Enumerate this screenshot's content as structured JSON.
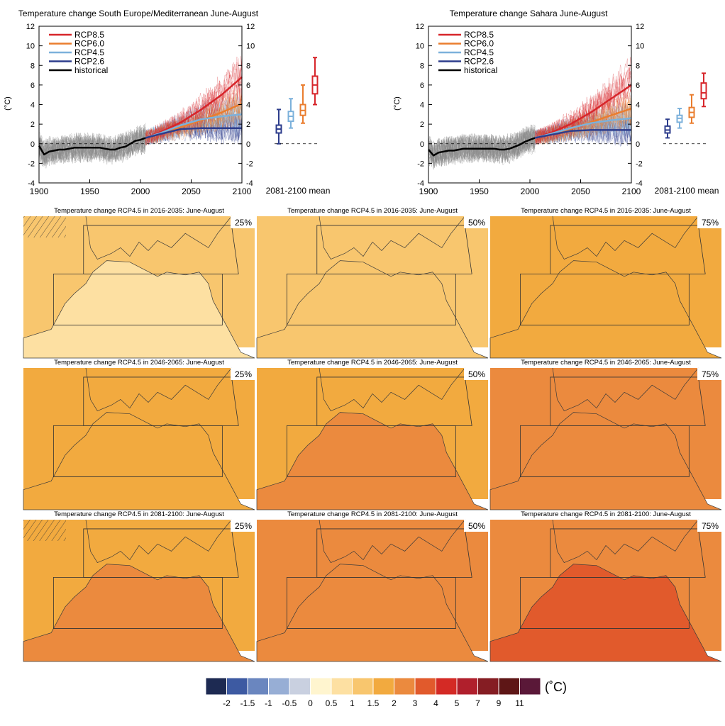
{
  "colors": {
    "rcp85": "#d7262b",
    "rcp60": "#ea7d2e",
    "rcp45": "#7cb1db",
    "rcp26": "#2d3d8c",
    "historical": "#000000",
    "historical_spread": "#8a8a8a",
    "land_outline": "#3a3a3a",
    "box_outline": "#333333"
  },
  "chart_data": [
    {
      "type": "line",
      "title": "Temperature change South Europe/Mediterranean June-August",
      "ylabel": "(°C)",
      "xlabel": "",
      "xlim": [
        1900,
        2100
      ],
      "ylim": [
        -4,
        12
      ],
      "x_ticks": [
        "1900",
        "1950",
        "2000",
        "2050",
        "2100"
      ],
      "y_ticks": [
        "-4",
        "-2",
        "0",
        "2",
        "4",
        "6",
        "8",
        "10",
        "12"
      ],
      "legend": [
        "RCP8.5",
        "RCP6.0",
        "RCP4.5",
        "RCP2.6",
        "historical"
      ],
      "legend_placement": "top-left",
      "series": [
        {
          "name": "historical",
          "x": [
            1900,
            1905,
            1910,
            1915,
            1920,
            1925,
            1930,
            1935,
            1940,
            1945,
            1950,
            1955,
            1960,
            1965,
            1970,
            1975,
            1980,
            1985,
            1990,
            1995,
            2000,
            2005
          ],
          "values": [
            -0.2,
            -1.1,
            -0.8,
            -0.7,
            -0.6,
            -0.6,
            -0.5,
            -0.4,
            -0.4,
            -0.4,
            -0.4,
            -0.4,
            -0.4,
            -0.5,
            -0.6,
            -0.6,
            -0.4,
            -0.3,
            0.0,
            0.3,
            0.4,
            0.6
          ]
        },
        {
          "name": "RCP8.5",
          "x": [
            2005,
            2020,
            2040,
            2060,
            2080,
            2100
          ],
          "values": [
            0.6,
            1.2,
            2.2,
            3.5,
            5.0,
            6.8
          ]
        },
        {
          "name": "RCP6.0",
          "x": [
            2005,
            2020,
            2040,
            2060,
            2080,
            2100
          ],
          "values": [
            0.6,
            1.0,
            1.7,
            2.4,
            3.2,
            4.1
          ]
        },
        {
          "name": "RCP4.5",
          "x": [
            2005,
            2020,
            2040,
            2060,
            2080,
            2100
          ],
          "values": [
            0.6,
            1.1,
            1.9,
            2.5,
            2.8,
            3.0
          ]
        },
        {
          "name": "RCP2.6",
          "x": [
            2005,
            2020,
            2040,
            2060,
            2080,
            2100
          ],
          "values": [
            0.6,
            1.0,
            1.5,
            1.6,
            1.6,
            1.6
          ]
        }
      ],
      "boxplot": {
        "label": "2081-2100 mean",
        "boxes": [
          {
            "name": "RCP2.6",
            "whisker_low": 0.0,
            "q1": 1.1,
            "median": 1.5,
            "q3": 1.9,
            "whisker_high": 3.5
          },
          {
            "name": "RCP4.5",
            "whisker_low": 1.6,
            "q1": 2.3,
            "median": 2.8,
            "q3": 3.3,
            "whisker_high": 4.6
          },
          {
            "name": "RCP6.0",
            "whisker_low": 2.1,
            "q1": 2.9,
            "median": 3.4,
            "q3": 4.0,
            "whisker_high": 6.0
          },
          {
            "name": "RCP8.5",
            "whisker_low": 4.0,
            "q1": 5.1,
            "median": 6.0,
            "q3": 6.9,
            "whisker_high": 8.8
          }
        ]
      }
    },
    {
      "type": "line",
      "title": "Temperature change Sahara June-August",
      "ylabel": "(°C)",
      "xlabel": "",
      "xlim": [
        1900,
        2100
      ],
      "ylim": [
        -4,
        12
      ],
      "x_ticks": [
        "1900",
        "1950",
        "2000",
        "2050",
        "2100"
      ],
      "y_ticks": [
        "-4",
        "-2",
        "0",
        "2",
        "4",
        "6",
        "8",
        "10",
        "12"
      ],
      "legend": [
        "RCP8.5",
        "RCP6.0",
        "RCP4.5",
        "RCP2.6",
        "historical"
      ],
      "legend_placement": "top-left",
      "series": [
        {
          "name": "historical",
          "x": [
            1900,
            1905,
            1910,
            1915,
            1920,
            1925,
            1930,
            1935,
            1940,
            1945,
            1950,
            1955,
            1960,
            1965,
            1970,
            1975,
            1980,
            1985,
            1990,
            1995,
            2000,
            2005
          ],
          "values": [
            -0.6,
            -1.2,
            -0.9,
            -0.8,
            -0.7,
            -0.7,
            -0.6,
            -0.5,
            -0.5,
            -0.5,
            -0.5,
            -0.5,
            -0.5,
            -0.5,
            -0.6,
            -0.6,
            -0.5,
            -0.3,
            -0.1,
            0.2,
            0.4,
            0.6
          ]
        },
        {
          "name": "RCP8.5",
          "x": [
            2005,
            2020,
            2040,
            2060,
            2080,
            2100
          ],
          "values": [
            0.6,
            1.1,
            2.0,
            3.2,
            4.6,
            6.0
          ]
        },
        {
          "name": "RCP6.0",
          "x": [
            2005,
            2020,
            2040,
            2060,
            2080,
            2100
          ],
          "values": [
            0.6,
            0.9,
            1.5,
            2.2,
            2.9,
            3.6
          ]
        },
        {
          "name": "RCP4.5",
          "x": [
            2005,
            2020,
            2040,
            2060,
            2080,
            2100
          ],
          "values": [
            0.6,
            1.0,
            1.6,
            2.1,
            2.4,
            2.6
          ]
        },
        {
          "name": "RCP2.6",
          "x": [
            2005,
            2020,
            2040,
            2060,
            2080,
            2100
          ],
          "values": [
            0.6,
            0.9,
            1.3,
            1.4,
            1.4,
            1.4
          ]
        }
      ],
      "boxplot": {
        "label": "2081-2100 mean",
        "boxes": [
          {
            "name": "RCP2.6",
            "whisker_low": 0.6,
            "q1": 1.1,
            "median": 1.4,
            "q3": 1.8,
            "whisker_high": 2.5
          },
          {
            "name": "RCP4.5",
            "whisker_low": 1.6,
            "q1": 2.2,
            "median": 2.6,
            "q3": 2.9,
            "whisker_high": 3.6
          },
          {
            "name": "RCP6.0",
            "whisker_low": 2.1,
            "q1": 2.7,
            "median": 3.2,
            "q3": 3.7,
            "whisker_high": 5.0
          },
          {
            "name": "RCP8.5",
            "whisker_low": 3.8,
            "q1": 4.6,
            "median": 5.2,
            "q3": 6.2,
            "whisker_high": 7.2
          }
        ]
      }
    },
    {
      "type": "heatmap",
      "title": "Temperature change RCP4.5 in 2016-2035: June-August",
      "percentiles": [
        "25%",
        "50%",
        "75%"
      ],
      "land_level_degC": [
        0.5,
        1.0,
        1.5
      ],
      "sea_level_degC": [
        1.0,
        1.0,
        1.5
      ]
    },
    {
      "type": "heatmap",
      "title": "Temperature change RCP4.5 in 2046-2065: June-August",
      "percentiles": [
        "25%",
        "50%",
        "75%"
      ],
      "land_level_degC": [
        1.5,
        2.0,
        2.0
      ],
      "sea_level_degC": [
        1.5,
        1.5,
        2.0
      ]
    },
    {
      "type": "heatmap",
      "title": "Temperature change RCP4.5 in 2081-2100: June-August",
      "percentiles": [
        "25%",
        "50%",
        "75%"
      ],
      "land_level_degC": [
        2.0,
        2.0,
        3.0
      ],
      "sea_level_degC": [
        1.5,
        2.0,
        2.0
      ]
    },
    {
      "type": "colorbar",
      "unit": "(˚C)",
      "labels": [
        "-2",
        "-1.5",
        "-1",
        "-0.5",
        "0",
        "0.5",
        "1",
        "1.5",
        "2",
        "3",
        "4",
        "5",
        "7",
        "9",
        "11"
      ],
      "colors": [
        "#1d2a52",
        "#3d5aa2",
        "#6a86bf",
        "#97aed5",
        "#c9d0e0",
        "#fff5cf",
        "#fde0a2",
        "#f8c66e",
        "#f2aa3f",
        "#eb8a3e",
        "#e15a2c",
        "#d42a25",
        "#b01f2c",
        "#851d23",
        "#5e1616",
        "#5a1838"
      ]
    }
  ]
}
